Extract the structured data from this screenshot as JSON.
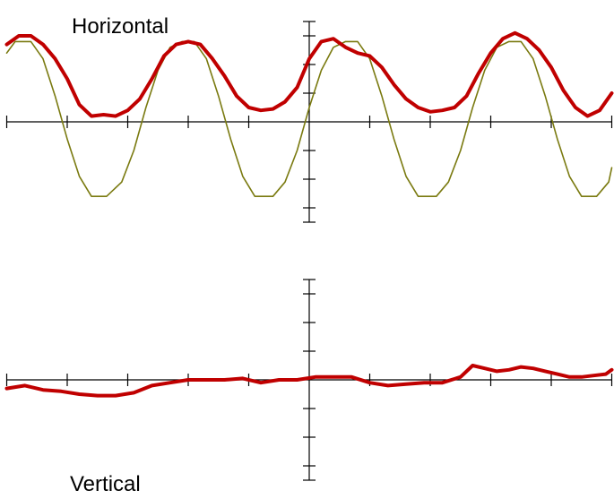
{
  "chart_data": [
    {
      "type": "line",
      "title": "Horizontal",
      "x_range": [
        -5,
        5
      ],
      "y_range": [
        -3.5,
        3.5
      ],
      "grid": false,
      "axis_color": "#000000",
      "series": [
        {
          "color": "#7a7a10",
          "points": [
            [
              -5.0,
              2.4
            ],
            [
              -4.86,
              2.8
            ],
            [
              -4.6,
              2.8
            ],
            [
              -4.4,
              2.2
            ],
            [
              -4.2,
              0.9
            ],
            [
              -4.0,
              -0.6
            ],
            [
              -3.8,
              -1.9
            ],
            [
              -3.6,
              -2.6
            ],
            [
              -3.35,
              -2.6
            ],
            [
              -3.1,
              -2.1
            ],
            [
              -2.9,
              -1.0
            ],
            [
              -2.7,
              0.5
            ],
            [
              -2.5,
              1.8
            ],
            [
              -2.3,
              2.6
            ],
            [
              -2.1,
              2.8
            ],
            [
              -1.9,
              2.8
            ],
            [
              -1.7,
              2.2
            ],
            [
              -1.5,
              0.9
            ],
            [
              -1.3,
              -0.6
            ],
            [
              -1.1,
              -1.9
            ],
            [
              -0.9,
              -2.6
            ],
            [
              -0.6,
              -2.6
            ],
            [
              -0.4,
              -2.1
            ],
            [
              -0.2,
              -1.0
            ],
            [
              0.0,
              0.5
            ],
            [
              0.2,
              1.8
            ],
            [
              0.4,
              2.6
            ],
            [
              0.6,
              2.8
            ],
            [
              0.8,
              2.8
            ],
            [
              1.0,
              2.2
            ],
            [
              1.2,
              0.9
            ],
            [
              1.4,
              -0.6
            ],
            [
              1.6,
              -1.9
            ],
            [
              1.8,
              -2.6
            ],
            [
              2.1,
              -2.6
            ],
            [
              2.3,
              -2.1
            ],
            [
              2.5,
              -1.0
            ],
            [
              2.7,
              0.5
            ],
            [
              2.9,
              1.8
            ],
            [
              3.1,
              2.6
            ],
            [
              3.3,
              2.8
            ],
            [
              3.5,
              2.8
            ],
            [
              3.7,
              2.2
            ],
            [
              3.9,
              0.9
            ],
            [
              4.1,
              -0.6
            ],
            [
              4.3,
              -1.9
            ],
            [
              4.5,
              -2.6
            ],
            [
              4.75,
              -2.6
            ],
            [
              4.95,
              -2.1
            ],
            [
              5.0,
              -1.6
            ]
          ]
        },
        {
          "color": "#c00000",
          "points": [
            [
              -5.0,
              2.7
            ],
            [
              -4.8,
              3.0
            ],
            [
              -4.6,
              3.0
            ],
            [
              -4.4,
              2.7
            ],
            [
              -4.2,
              2.2
            ],
            [
              -4.0,
              1.5
            ],
            [
              -3.8,
              0.6
            ],
            [
              -3.6,
              0.2
            ],
            [
              -3.4,
              0.25
            ],
            [
              -3.2,
              0.2
            ],
            [
              -3.0,
              0.4
            ],
            [
              -2.8,
              0.8
            ],
            [
              -2.6,
              1.5
            ],
            [
              -2.4,
              2.3
            ],
            [
              -2.2,
              2.7
            ],
            [
              -2.0,
              2.8
            ],
            [
              -1.8,
              2.7
            ],
            [
              -1.6,
              2.2
            ],
            [
              -1.4,
              1.6
            ],
            [
              -1.2,
              0.9
            ],
            [
              -1.0,
              0.5
            ],
            [
              -0.8,
              0.4
            ],
            [
              -0.6,
              0.45
            ],
            [
              -0.4,
              0.7
            ],
            [
              -0.2,
              1.2
            ],
            [
              0.0,
              2.2
            ],
            [
              0.2,
              2.8
            ],
            [
              0.4,
              2.9
            ],
            [
              0.6,
              2.6
            ],
            [
              0.8,
              2.4
            ],
            [
              1.0,
              2.3
            ],
            [
              1.2,
              1.9
            ],
            [
              1.4,
              1.3
            ],
            [
              1.6,
              0.8
            ],
            [
              1.8,
              0.5
            ],
            [
              2.0,
              0.35
            ],
            [
              2.2,
              0.4
            ],
            [
              2.4,
              0.5
            ],
            [
              2.6,
              0.9
            ],
            [
              2.8,
              1.7
            ],
            [
              3.0,
              2.4
            ],
            [
              3.2,
              2.9
            ],
            [
              3.4,
              3.1
            ],
            [
              3.6,
              2.9
            ],
            [
              3.8,
              2.5
            ],
            [
              4.0,
              1.9
            ],
            [
              4.2,
              1.1
            ],
            [
              4.4,
              0.5
            ],
            [
              4.6,
              0.2
            ],
            [
              4.8,
              0.4
            ],
            [
              5.0,
              1.0
            ]
          ]
        }
      ]
    },
    {
      "type": "line",
      "title": "Vertical",
      "x_range": [
        -5,
        5
      ],
      "y_range": [
        -3.5,
        3.5
      ],
      "grid": false,
      "axis_color": "#000000",
      "series": [
        {
          "color": "#c00000",
          "points": [
            [
              -5.0,
              -0.3
            ],
            [
              -4.7,
              -0.2
            ],
            [
              -4.4,
              -0.35
            ],
            [
              -4.1,
              -0.4
            ],
            [
              -3.8,
              -0.5
            ],
            [
              -3.5,
              -0.55
            ],
            [
              -3.2,
              -0.55
            ],
            [
              -2.9,
              -0.45
            ],
            [
              -2.6,
              -0.2
            ],
            [
              -2.3,
              -0.1
            ],
            [
              -2.0,
              0.0
            ],
            [
              -1.7,
              0.0
            ],
            [
              -1.4,
              0.0
            ],
            [
              -1.1,
              0.05
            ],
            [
              -0.8,
              -0.1
            ],
            [
              -0.5,
              0.0
            ],
            [
              -0.2,
              0.0
            ],
            [
              0.1,
              0.1
            ],
            [
              0.4,
              0.1
            ],
            [
              0.7,
              0.1
            ],
            [
              1.0,
              -0.1
            ],
            [
              1.3,
              -0.2
            ],
            [
              1.6,
              -0.15
            ],
            [
              1.9,
              -0.1
            ],
            [
              2.2,
              -0.1
            ],
            [
              2.5,
              0.1
            ],
            [
              2.7,
              0.5
            ],
            [
              2.9,
              0.4
            ],
            [
              3.1,
              0.3
            ],
            [
              3.3,
              0.35
            ],
            [
              3.5,
              0.45
            ],
            [
              3.7,
              0.4
            ],
            [
              3.9,
              0.3
            ],
            [
              4.1,
              0.2
            ],
            [
              4.3,
              0.1
            ],
            [
              4.5,
              0.1
            ],
            [
              4.7,
              0.15
            ],
            [
              4.9,
              0.2
            ],
            [
              5.0,
              0.35
            ]
          ]
        }
      ]
    }
  ]
}
